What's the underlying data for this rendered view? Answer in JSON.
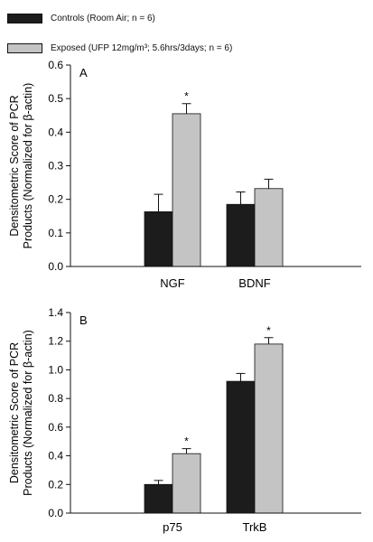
{
  "legend": [
    {
      "label": "Controls (Room Air; n = 6)",
      "color": "#1c1c1c"
    },
    {
      "label": "Exposed (UFP 12mg/m³; 5.6hrs/3days; n = 6)",
      "color": "#c4c4c4"
    }
  ],
  "chart_data": [
    {
      "type": "bar",
      "panel": "A",
      "categories": [
        "NGF",
        "BDNF"
      ],
      "series": [
        {
          "name": "Controls (Room Air; n = 6)",
          "values": [
            0.163,
            0.185
          ],
          "errors": [
            0.052,
            0.037
          ],
          "color": "#1c1c1c"
        },
        {
          "name": "Exposed (UFP 12mg/m³; 5.6hrs/3days; n = 6)",
          "values": [
            0.455,
            0.232
          ],
          "errors": [
            0.03,
            0.028
          ],
          "color": "#c4c4c4"
        }
      ],
      "significance": [
        "*",
        ""
      ],
      "ylabel_line1": "Densitometric Score of PCR",
      "ylabel_line2": "Products (Normalized for β-actin)",
      "ylim": [
        0,
        0.6
      ],
      "yticks": [
        "0.0",
        "0.1",
        "0.2",
        "0.3",
        "0.4",
        "0.5",
        "0.6"
      ]
    },
    {
      "type": "bar",
      "panel": "B",
      "categories": [
        "p75",
        "TrkB"
      ],
      "series": [
        {
          "name": "Controls (Room Air; n = 6)",
          "values": [
            0.2,
            0.92
          ],
          "errors": [
            0.028,
            0.055
          ],
          "color": "#1c1c1c"
        },
        {
          "name": "Exposed (UFP 12mg/m³; 5.6hrs/3days; n = 6)",
          "values": [
            0.415,
            1.18
          ],
          "errors": [
            0.035,
            0.045
          ],
          "color": "#c4c4c4"
        }
      ],
      "significance": [
        "*",
        "*"
      ],
      "ylabel_line1": "Densitometric Score of PCR",
      "ylabel_line2": "Products (Normalized for β-actin)",
      "ylim": [
        0,
        1.4
      ],
      "yticks": [
        "0.0",
        "0.2",
        "0.4",
        "0.6",
        "0.8",
        "1.0",
        "1.2",
        "1.4"
      ]
    }
  ]
}
